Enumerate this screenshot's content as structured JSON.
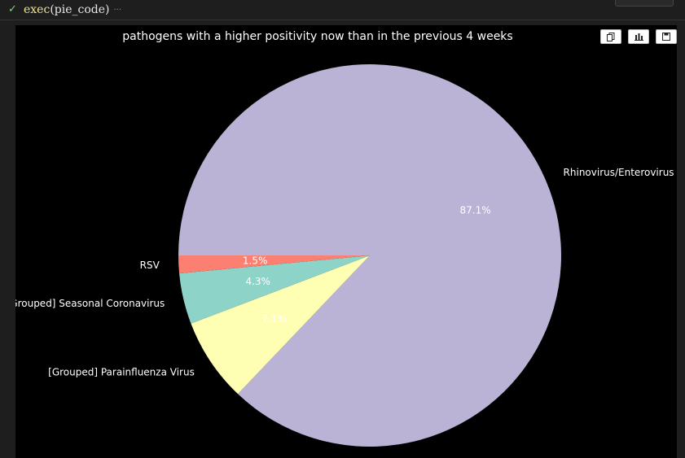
{
  "cell": {
    "status_icon": "check-icon",
    "exec_func": "exec",
    "exec_arg": "(pie_code)",
    "ellipsis": "···"
  },
  "toolbar": {
    "copy_icon": "copy-icon",
    "chart_icon": "bar-chart-icon",
    "save_icon": "save-icon"
  },
  "colors": {
    "background": "#000000",
    "label_text": "#ffffff"
  },
  "chart_data": {
    "type": "pie",
    "title": "pathogens with a higher positivity now than in the previous 4 weeks",
    "start_angle_deg": 180,
    "direction": "clockwise",
    "slices": [
      {
        "label": "Rhinovirus/Enterovirus",
        "value": 87.1,
        "pct_label": "87.1%",
        "color": "#bab3d6"
      },
      {
        "label": "[Grouped] Parainfluenza Virus",
        "value": 7.1,
        "pct_label": "7.1%",
        "color": "#ffffb3"
      },
      {
        "label": "[Grouped] Seasonal Coronavirus",
        "value": 4.3,
        "pct_label": "4.3%",
        "color": "#8dd3c7"
      },
      {
        "label": "RSV",
        "value": 1.5,
        "pct_label": "1.5%",
        "color": "#fb8072"
      }
    ]
  }
}
